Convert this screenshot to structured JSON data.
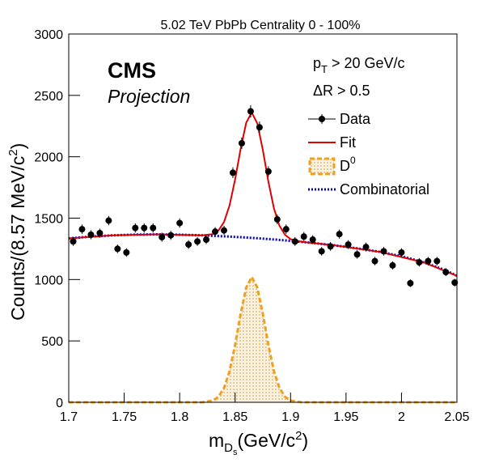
{
  "chart_data": {
    "type": "line",
    "title": "5.02 TeV PbPb Centrality 0 - 100%",
    "x_label": {
      "main": "m",
      "sub": "D",
      "subsub": "s",
      "rest": "(GeV/c",
      "sup": "2",
      "end": ")"
    },
    "y_label": {
      "main": "Counts/(8.57 MeV/c",
      "sup": "2",
      "end": ")"
    },
    "annotations": {
      "experiment": "CMS",
      "status": "Projection",
      "pt_cut": {
        "main": "p",
        "sub": "T",
        "rest": " > 20 GeV/c"
      },
      "dr_cut": "ΔR > 0.5"
    },
    "xlim": [
      1.7,
      2.05
    ],
    "xticks": [
      1.7,
      1.75,
      1.8,
      1.85,
      1.9,
      1.95,
      2,
      2.05
    ],
    "ylim": [
      0,
      3000
    ],
    "yticks": [
      0,
      500,
      1000,
      1500,
      2000,
      2500,
      3000
    ],
    "series": [
      {
        "name": "Data",
        "type": "errorbar",
        "color": "#000000",
        "x": [
          1.704,
          1.712,
          1.72,
          1.728,
          1.736,
          1.744,
          1.752,
          1.76,
          1.768,
          1.776,
          1.784,
          1.792,
          1.8,
          1.808,
          1.816,
          1.824,
          1.832,
          1.84,
          1.848,
          1.856,
          1.864,
          1.872,
          1.88,
          1.888,
          1.896,
          1.904,
          1.912,
          1.92,
          1.928,
          1.936,
          1.944,
          1.952,
          1.96,
          1.968,
          1.976,
          1.984,
          1.992,
          2,
          2.008,
          2.016,
          2.024,
          2.032,
          2.04,
          2.048
        ],
        "values": [
          1310,
          1410,
          1365,
          1378,
          1480,
          1250,
          1220,
          1420,
          1420,
          1420,
          1345,
          1360,
          1460,
          1285,
          1310,
          1325,
          1390,
          1400,
          1870,
          2110,
          2370,
          2240,
          1880,
          1490,
          1410,
          1310,
          1350,
          1325,
          1230,
          1270,
          1370,
          1285,
          1205,
          1265,
          1150,
          1230,
          1115,
          1220,
          970,
          1140,
          1150,
          1150,
          1060,
          975
        ],
        "errors": [
          36,
          38,
          37,
          37,
          38,
          35,
          35,
          38,
          38,
          38,
          37,
          37,
          38,
          36,
          36,
          36,
          37,
          37,
          43,
          46,
          49,
          47,
          43,
          39,
          38,
          36,
          37,
          36,
          35,
          36,
          37,
          36,
          35,
          36,
          34,
          35,
          33,
          35,
          31,
          34,
          34,
          34,
          33,
          31
        ]
      },
      {
        "name": "Fit",
        "type": "line",
        "color": "#e00000",
        "x": [
          1.7,
          1.74,
          1.78,
          1.82,
          1.83,
          1.835,
          1.84,
          1.845,
          1.85,
          1.855,
          1.86,
          1.865,
          1.87,
          1.875,
          1.88,
          1.885,
          1.89,
          1.895,
          1.9,
          1.91,
          1.94,
          1.98,
          2.02,
          2.05
        ],
        "values": [
          1335,
          1360,
          1368,
          1360,
          1370,
          1399,
          1468,
          1604,
          1815,
          2066,
          2277,
          2360,
          2272,
          2055,
          1797,
          1580,
          1438,
          1364,
          1329,
          1307,
          1278,
          1226,
          1140,
          1030
        ]
      },
      {
        "name": "D",
        "name_sup": "0",
        "type": "area",
        "color": "#f0a020",
        "x": [
          1.7,
          1.82,
          1.83,
          1.835,
          1.84,
          1.845,
          1.85,
          1.855,
          1.86,
          1.865,
          1.87,
          1.875,
          1.88,
          1.885,
          1.89,
          1.895,
          1.9,
          1.91,
          2.05
        ],
        "values": [
          0,
          0,
          14,
          45,
          116,
          254,
          467,
          721,
          935,
          1020,
          935,
          721,
          467,
          254,
          116,
          45,
          14,
          0,
          0
        ]
      },
      {
        "name": "Combinatorial",
        "type": "dotted",
        "color": "#0000cc",
        "x": [
          1.7,
          1.72,
          1.74,
          1.76,
          1.78,
          1.8,
          1.82,
          1.84,
          1.86,
          1.88,
          1.9,
          1.92,
          1.94,
          1.96,
          1.98,
          2,
          2.02,
          2.04,
          2.05
        ],
        "values": [
          1335,
          1350,
          1360,
          1366,
          1368,
          1365,
          1360,
          1352,
          1342,
          1330,
          1315,
          1298,
          1278,
          1254,
          1226,
          1190,
          1140,
          1075,
          1030
        ]
      }
    ]
  }
}
